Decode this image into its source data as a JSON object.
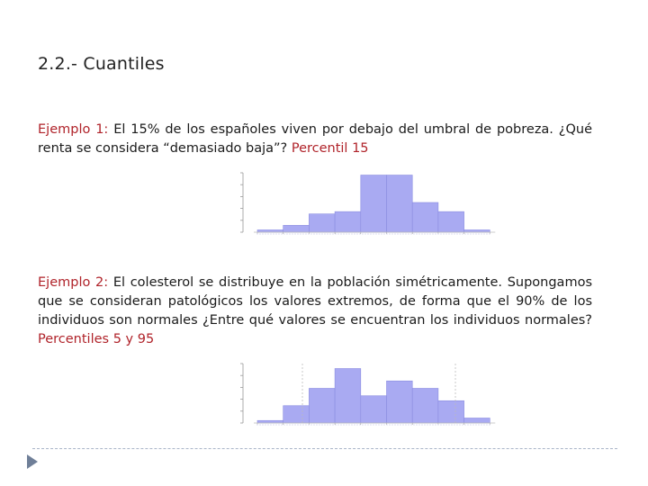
{
  "slide": {
    "title": "2.2.- Cuantiles"
  },
  "example1": {
    "label": "Ejemplo 1:",
    "text": " El 15% de los españoles viven por debajo del umbral de pobreza. ¿Qué renta se considera “demasiado baja”? ",
    "highlight": "Percentil 15"
  },
  "example2": {
    "label": "Ejemplo 2:",
    "text": " El colesterol se distribuye en la población simétricamente. Supongamos que se consideran patológicos los valores extremos, de forma que el 90% de los individuos son normales ¿Entre qué valores se encuentran los individuos normales? ",
    "highlight": "Percentiles 5 y 95"
  },
  "colors": {
    "accent_red": "#b0232a",
    "bar_fill": "#a9aaf2",
    "bar_stroke": "#8a8ce0"
  },
  "chart_data": [
    {
      "type": "bar",
      "values": [
        1,
        3,
        8,
        9,
        25,
        25,
        13,
        9,
        1
      ],
      "ylim": [
        0,
        26
      ]
    },
    {
      "type": "bar",
      "values": [
        1,
        7,
        14,
        22,
        11,
        17,
        14,
        9,
        2
      ],
      "ylim": [
        0,
        24
      ]
    }
  ]
}
